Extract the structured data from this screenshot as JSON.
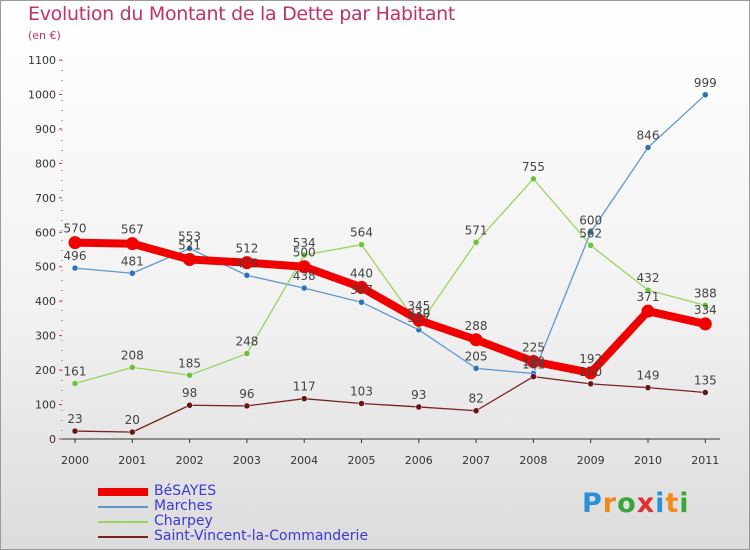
{
  "header": {
    "title": "Evolution du Montant de la Dette par Habitant",
    "subtitle": "(en €)"
  },
  "logo": {
    "letters": [
      "P",
      "r",
      "o",
      "x",
      "i",
      "t",
      "i"
    ],
    "colors": [
      "#2a8fd8",
      "#f08a1c",
      "#3aa53a",
      "#e03030",
      "#2a8fd8",
      "#f08a1c",
      "#3aa53a"
    ]
  },
  "chart_data": {
    "type": "line",
    "title": "Evolution du Montant de la Dette par Habitant",
    "ylabel": "(en €)",
    "xlabel": "",
    "ylim": [
      0,
      1100
    ],
    "yticks": [
      0,
      100,
      200,
      300,
      400,
      500,
      600,
      700,
      800,
      900,
      1000,
      1100
    ],
    "categories": [
      "2000",
      "2001",
      "2002",
      "2003",
      "2004",
      "2005",
      "2006",
      "2007",
      "2008",
      "2009",
      "2010",
      "2011"
    ],
    "grid": false,
    "legend_position": "bottom-left",
    "series": [
      {
        "name": "Marches",
        "color": "#5f97cc",
        "marker": "#2d71b8",
        "values": [
          496,
          481,
          553,
          475,
          438,
          397,
          317,
          205,
          190,
          600,
          846,
          999
        ],
        "labels": [
          "496",
          "481",
          "553",
          "475",
          "438",
          "397",
          "317",
          "205",
          "190",
          "600",
          "846",
          "999"
        ]
      },
      {
        "name": "Charpey",
        "color": "#9ad45e",
        "marker": "#6cc23a",
        "values": [
          161,
          208,
          185,
          248,
          534,
          564,
          330,
          571,
          755,
          562,
          432,
          388
        ],
        "labels": [
          "161",
          "208",
          "185",
          "248",
          "534",
          "564",
          "330",
          "571",
          "755",
          "562",
          "432",
          "388"
        ]
      },
      {
        "name": "Saint-Vincent-la-Commanderie",
        "color": "#7a2222",
        "marker": "#651515",
        "values": [
          23,
          20,
          98,
          96,
          117,
          103,
          93,
          82,
          181,
          160,
          149,
          135
        ],
        "labels": [
          "23",
          "20",
          "98",
          "96",
          "117",
          "103",
          "93",
          "82",
          "181",
          "160",
          "149",
          "135"
        ]
      },
      {
        "name": "BéSAYES",
        "color": "#f00000",
        "marker": "#f00000",
        "values": [
          570,
          567,
          521,
          512,
          500,
          440,
          345,
          288,
          225,
          192,
          371,
          334
        ],
        "labels": [
          "570",
          "567",
          "521",
          "512",
          "500",
          "440",
          "345",
          "288",
          "225",
          "192",
          "371",
          "334"
        ]
      }
    ]
  }
}
